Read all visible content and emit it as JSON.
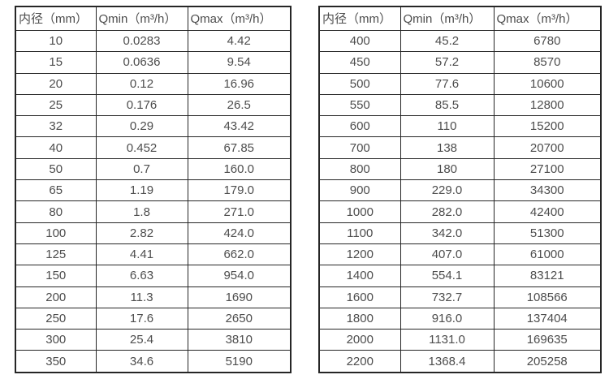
{
  "page": {
    "background_color": "#ffffff",
    "border_color": "#262626",
    "text_color": "#4d4d4d"
  },
  "tables": [
    {
      "name": "diameter-flow-table-small",
      "headers": [
        "内径（mm）",
        "Qmin（m³/h）",
        "Qmax（m³/h）"
      ],
      "rows": [
        [
          "10",
          "0.0283",
          "4.42"
        ],
        [
          "15",
          "0.0636",
          "9.54"
        ],
        [
          "20",
          "0.12",
          "16.96"
        ],
        [
          "25",
          "0.176",
          "26.5"
        ],
        [
          "32",
          "0.29",
          "43.42"
        ],
        [
          "40",
          "0.452",
          "67.85"
        ],
        [
          "50",
          "0.7",
          "160.0"
        ],
        [
          "65",
          "1.19",
          "179.0"
        ],
        [
          "80",
          "1.8",
          "271.0"
        ],
        [
          "100",
          "2.82",
          "424.0"
        ],
        [
          "125",
          "4.41",
          "662.0"
        ],
        [
          "150",
          "6.63",
          "954.0"
        ],
        [
          "200",
          "11.3",
          "1690"
        ],
        [
          "250",
          "17.6",
          "2650"
        ],
        [
          "300",
          "25.4",
          "3810"
        ],
        [
          "350",
          "34.6",
          "5190"
        ]
      ]
    },
    {
      "name": "diameter-flow-table-large",
      "headers": [
        "内径（mm）",
        "Qmin（m³/h）",
        "Qmax（m³/h）"
      ],
      "rows": [
        [
          "400",
          "45.2",
          "6780"
        ],
        [
          "450",
          "57.2",
          "8570"
        ],
        [
          "500",
          "77.6",
          "10600"
        ],
        [
          "550",
          "85.5",
          "12800"
        ],
        [
          "600",
          "110",
          "15200"
        ],
        [
          "700",
          "138",
          "20700"
        ],
        [
          "800",
          "180",
          "27100"
        ],
        [
          "900",
          "229.0",
          "34300"
        ],
        [
          "1000",
          "282.0",
          "42400"
        ],
        [
          "1100",
          "342.0",
          "51300"
        ],
        [
          "1200",
          "407.0",
          "61000"
        ],
        [
          "1400",
          "554.1",
          "83121"
        ],
        [
          "1600",
          "732.7",
          "108566"
        ],
        [
          "1800",
          "916.0",
          "137404"
        ],
        [
          "2000",
          "1131.0",
          "169635"
        ],
        [
          "2200",
          "1368.4",
          "205258"
        ]
      ]
    }
  ]
}
